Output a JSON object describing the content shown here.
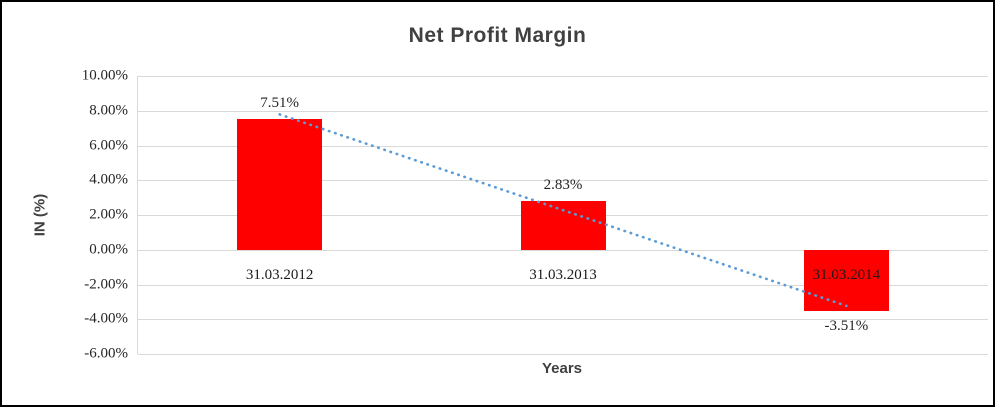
{
  "chart_data": {
    "type": "bar",
    "title": "Net Profit Margin",
    "xlabel": "Years",
    "ylabel": "IN (%)",
    "categories": [
      "31.03.2012",
      "31.03.2013",
      "31.03.2014"
    ],
    "values": [
      7.51,
      2.83,
      -3.51
    ],
    "data_labels": [
      "7.51%",
      "2.83%",
      "-3.51%"
    ],
    "ylim": [
      -6,
      10
    ],
    "ytick_step": 2,
    "ytick_labels": [
      "10.00%",
      "8.00%",
      "6.00%",
      "4.00%",
      "2.00%",
      "0.00%",
      "-2.00%",
      "-4.00%",
      "-6.00%"
    ],
    "grid": true,
    "legend": "none",
    "bar_color": "#ff0000",
    "gridline_color": "#d9d9d9",
    "trendline": {
      "style": "dotted",
      "color": "#5b9bd5",
      "start_value": 7.79,
      "end_value": -3.23
    }
  }
}
